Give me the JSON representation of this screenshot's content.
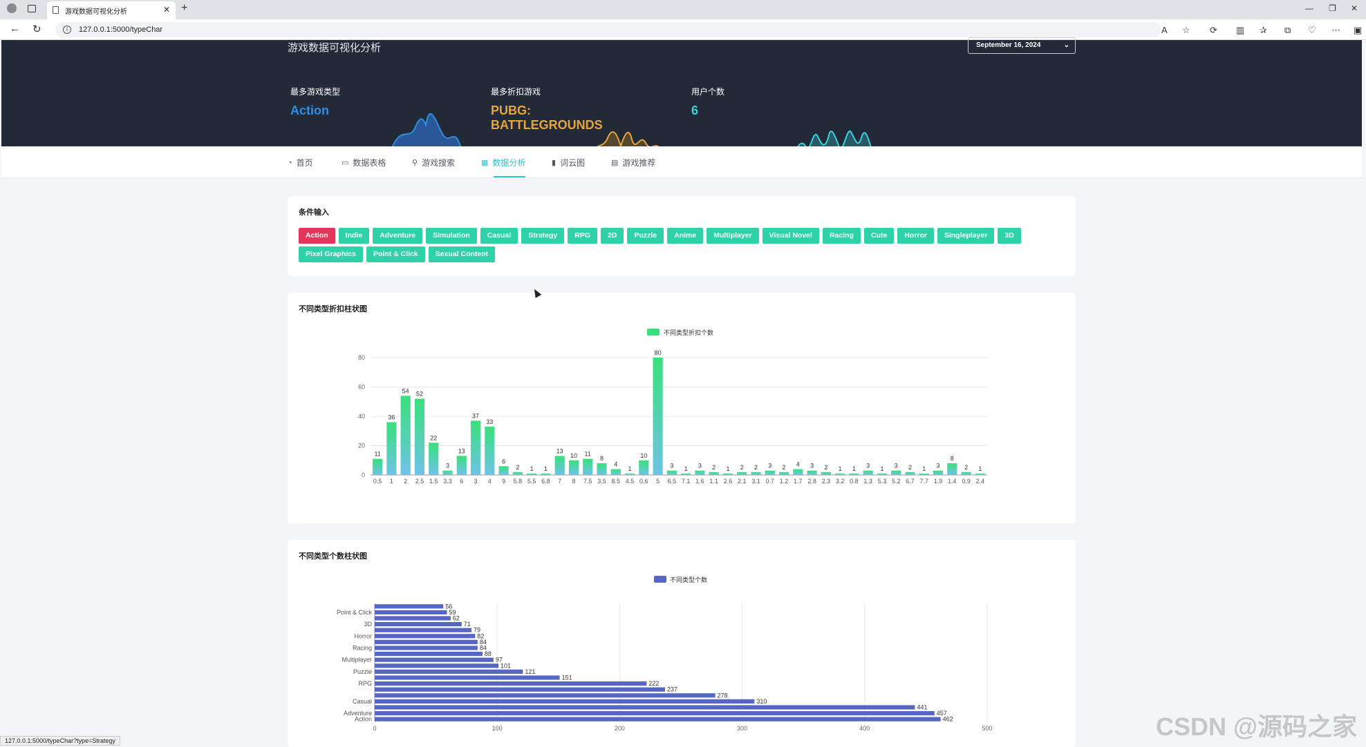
{
  "browser": {
    "tab_title": "游戏数据可视化分析",
    "url": "127.0.0.1:5000/typeChar",
    "status_url": "127.0.0.1:5000/typeChar?type=Strategy"
  },
  "header": {
    "site_title": "游戏数据可视化分析",
    "date": "September 16, 2024",
    "stats": [
      {
        "label": "最多游戏类型",
        "value": "Action",
        "color": "#2f8ee0"
      },
      {
        "label": "最多折扣游戏",
        "value": "PUBG: BATTLEGROUNDS",
        "color": "#e8a53a"
      },
      {
        "label": "用户个数",
        "value": "6",
        "color": "#3fd0de"
      }
    ]
  },
  "nav": {
    "items": [
      {
        "label": "首页",
        "icon": "dashboard-icon"
      },
      {
        "label": "数据表格",
        "icon": "table-icon"
      },
      {
        "label": "游戏搜索",
        "icon": "search-icon"
      },
      {
        "label": "数据分析",
        "icon": "grid-icon"
      },
      {
        "label": "词云图",
        "icon": "bar-chart-icon"
      },
      {
        "label": "游戏推荐",
        "icon": "recommend-icon"
      }
    ],
    "active": "数据分析"
  },
  "filter": {
    "title": "条件输入",
    "tags": [
      "Action",
      "Indie",
      "Adventure",
      "Simulation",
      "Casual",
      "Strategy",
      "RPG",
      "2D",
      "Puzzle",
      "Anime",
      "Multiplayer",
      "Visual Novel",
      "Racing",
      "Cute",
      "Horror",
      "Singleplayer",
      "3D",
      "Pixel Graphics",
      "Point & Click",
      "Sexual Content"
    ],
    "active": "Action"
  },
  "cards": {
    "discount_title": "不同类型折扣柱状图",
    "count_title": "不同类型个数柱状图"
  },
  "watermark": "CSDN @源码之家",
  "chart_data": [
    {
      "type": "bar",
      "legend": [
        "不同类型折扣个数"
      ],
      "categories": [
        "0.5",
        "1",
        "2",
        "2.5",
        "1.5",
        "3.3",
        "6",
        "3",
        "4",
        "9",
        "5.8",
        "5.5",
        "6.8",
        "7",
        "8",
        "7.5",
        "3.5",
        "8.5",
        "4.5",
        "0.6",
        "5",
        "6.5",
        "7.1",
        "1.6",
        "1.1",
        "2.6",
        "2.1",
        "3.1",
        "0.7",
        "1.2",
        "1.7",
        "2.8",
        "2.3",
        "3.2",
        "0.8",
        "1.3",
        "5.3",
        "5.2",
        "6.7",
        "7.7",
        "1.9",
        "1.4",
        "0.9",
        "2.4"
      ],
      "values": [
        11,
        36,
        54,
        52,
        22,
        3,
        13,
        37,
        33,
        6,
        2,
        1,
        1,
        13,
        10,
        11,
        8,
        4,
        1,
        10,
        80,
        3,
        1,
        3,
        2,
        1,
        2,
        2,
        3,
        2,
        4,
        3,
        2,
        1,
        1,
        3,
        1,
        3,
        2,
        1,
        3,
        8,
        2,
        1
      ],
      "y_ticks": [
        0,
        20,
        40,
        60,
        80
      ],
      "ylim": [
        0,
        80
      ],
      "series_colors": [
        "#39e07c",
        "#6fc3e6"
      ]
    },
    {
      "type": "bar",
      "orientation": "horizontal",
      "legend": [
        "不同类型个数"
      ],
      "categories": [
        "Action",
        "Adventure",
        "Indie",
        "Casual",
        "Simulation",
        "Strategy",
        "RPG",
        "2D",
        "Puzzle",
        "Anime",
        "Multiplayer",
        "Visual Novel",
        "Racing",
        "Cute",
        "Horror",
        "Singleplayer",
        "3D",
        "Pixel Graphics",
        "Point & Click",
        "Sexual Content"
      ],
      "y_tick_labels": [
        "Action",
        "Adventure",
        "Casual",
        "RPG",
        "Puzzle",
        "Multiplayer",
        "Racing",
        "Horror",
        "3D",
        "Point & Click"
      ],
      "values": [
        462,
        457,
        441,
        310,
        278,
        237,
        222,
        151,
        121,
        101,
        97,
        88,
        84,
        84,
        82,
        79,
        71,
        62,
        59,
        56
      ],
      "x_ticks": [
        0,
        100,
        200,
        300,
        400,
        500
      ],
      "xlim": [
        0,
        500
      ],
      "color": "#5566c4"
    }
  ]
}
